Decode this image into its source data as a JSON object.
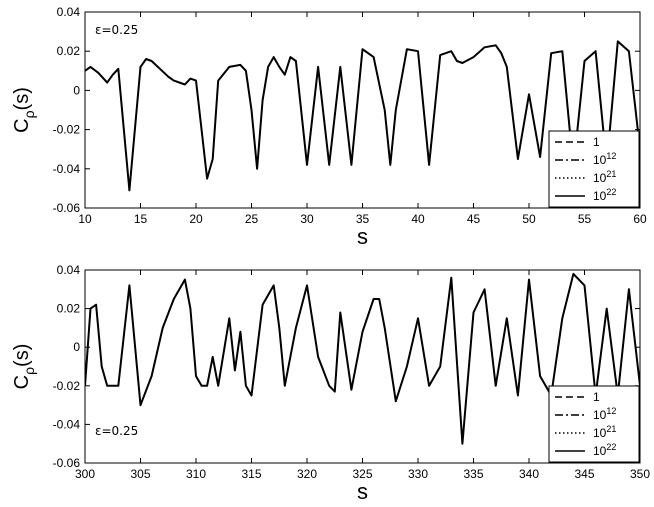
{
  "chart_data": [
    {
      "type": "line",
      "ylabel": "C",
      "ylabel_sub": "ρ",
      "ylabel_suffix": "(s)",
      "xlabel": "s",
      "annotation": "ε=0.25",
      "annotation_position": "top-left",
      "xlim": [
        10,
        60
      ],
      "ylim": [
        -0.06,
        0.04
      ],
      "xticks": [
        "10",
        "15",
        "20",
        "25",
        "30",
        "35",
        "40",
        "45",
        "50",
        "55",
        "60"
      ],
      "yticks": [
        "0.04",
        "0.02",
        "0",
        "-0.02",
        "-0.04",
        "-0.06"
      ],
      "legend_position": "bottom-right",
      "legend": [
        {
          "base": "1",
          "exp": "",
          "style": "dashed"
        },
        {
          "base": "10",
          "exp": "12",
          "style": "dashdot"
        },
        {
          "base": "10",
          "exp": "21",
          "style": "dotted"
        },
        {
          "base": "10",
          "exp": "22",
          "style": "solid"
        }
      ],
      "x": [
        10,
        10.5,
        11.2,
        12,
        12.5,
        13,
        14,
        15,
        15.5,
        16,
        17.5,
        18,
        19,
        19.5,
        20,
        21,
        21.5,
        22,
        23,
        24,
        24.5,
        25,
        25.5,
        26,
        26.5,
        27,
        27.5,
        28,
        28.5,
        29,
        30,
        31,
        32,
        33,
        34,
        35,
        36,
        37,
        37.5,
        38,
        39,
        40,
        41,
        42,
        43,
        43.5,
        44,
        45,
        46,
        47,
        47.5,
        48,
        49,
        50,
        51,
        52,
        53,
        54,
        55,
        56,
        57,
        58,
        59,
        60
      ],
      "series": [
        {
          "values": [
            0.01,
            0.012,
            0.009,
            0.004,
            0.008,
            0.011,
            -0.051,
            0.012,
            0.016,
            0.015,
            0.007,
            0.005,
            0.003,
            0.006,
            0.005,
            -0.045,
            -0.035,
            0.005,
            0.012,
            0.013,
            0.01,
            -0.01,
            -0.04,
            -0.005,
            0.012,
            0.017,
            0.012,
            0.008,
            0.017,
            0.015,
            -0.038,
            0.012,
            -0.038,
            0.012,
            -0.038,
            0.021,
            0.017,
            -0.01,
            -0.038,
            -0.01,
            0.021,
            0.02,
            -0.038,
            0.018,
            0.02,
            0.015,
            0.014,
            0.017,
            0.022,
            0.023,
            0.019,
            0.012,
            -0.035,
            -0.002,
            -0.034,
            0.019,
            0.02,
            -0.04,
            0.015,
            0.02,
            -0.038,
            0.025,
            0.02,
            -0.03
          ]
        }
      ]
    },
    {
      "type": "line",
      "ylabel": "C",
      "ylabel_sub": "ρ",
      "ylabel_suffix": "(s)",
      "xlabel": "s",
      "annotation": "ε=0.25",
      "annotation_position": "bottom-left",
      "xlim": [
        300,
        350
      ],
      "ylim": [
        -0.06,
        0.04
      ],
      "xticks": [
        "300",
        "305",
        "310",
        "315",
        "320",
        "325",
        "330",
        "335",
        "340",
        "345",
        "350"
      ],
      "yticks": [
        "0.04",
        "0.02",
        "0",
        "-0.02",
        "-0.04",
        "-0.06"
      ],
      "legend_position": "bottom-right",
      "legend": [
        {
          "base": "1",
          "exp": "",
          "style": "dashed"
        },
        {
          "base": "10",
          "exp": "12",
          "style": "dashdot"
        },
        {
          "base": "10",
          "exp": "21",
          "style": "dotted"
        },
        {
          "base": "10",
          "exp": "22",
          "style": "solid"
        }
      ],
      "x": [
        300,
        300.5,
        301,
        301.5,
        302,
        303,
        304,
        305,
        306,
        307,
        308,
        309,
        309.5,
        310,
        310.5,
        311,
        311.5,
        312,
        313,
        313.5,
        314,
        314.5,
        315,
        316,
        317,
        317.5,
        318,
        319,
        320,
        321,
        322,
        322.5,
        323,
        324,
        325,
        326,
        326.5,
        327,
        328,
        329,
        330,
        331,
        332,
        333,
        334,
        335,
        336,
        337,
        338,
        339,
        340,
        341,
        342,
        343,
        344,
        345,
        346,
        347,
        348,
        349,
        350
      ],
      "series": [
        {
          "values": [
            -0.02,
            0.02,
            0.022,
            -0.01,
            -0.02,
            -0.02,
            0.032,
            -0.03,
            -0.015,
            0.01,
            0.025,
            0.035,
            0.02,
            -0.015,
            -0.02,
            -0.02,
            -0.005,
            -0.02,
            0.015,
            -0.012,
            0.008,
            -0.02,
            -0.025,
            0.022,
            0.032,
            0.01,
            -0.02,
            0.01,
            0.032,
            -0.005,
            -0.02,
            -0.023,
            0.018,
            -0.022,
            0.008,
            0.025,
            0.025,
            0.01,
            -0.028,
            -0.01,
            0.015,
            -0.02,
            -0.01,
            0.036,
            -0.05,
            0.018,
            0.03,
            -0.02,
            0.015,
            -0.025,
            0.035,
            -0.015,
            -0.025,
            0.015,
            0.038,
            0.032,
            -0.025,
            0.02,
            -0.025,
            0.03,
            -0.02
          ]
        }
      ]
    }
  ]
}
